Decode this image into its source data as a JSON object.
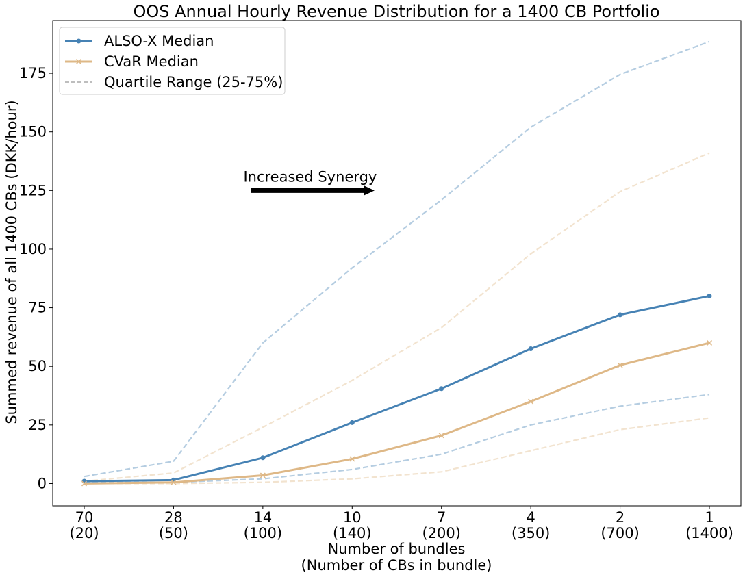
{
  "chart_data": {
    "type": "line",
    "title": "OOS Annual Hourly Revenue Distribution for a 1400 CB Portfolio",
    "xlabel_line1": "Number of bundles",
    "xlabel_line2": "(Number of CBs in bundle)",
    "ylabel": "Summed revenue of all 1400 CBs (DKK/hour)",
    "categories": [
      {
        "bundles": "70",
        "cbs": "(20)"
      },
      {
        "bundles": "28",
        "cbs": "(50)"
      },
      {
        "bundles": "14",
        "cbs": "(100)"
      },
      {
        "bundles": "10",
        "cbs": "(140)"
      },
      {
        "bundles": "7",
        "cbs": "(200)"
      },
      {
        "bundles": "4",
        "cbs": "(350)"
      },
      {
        "bundles": "2",
        "cbs": "(700)"
      },
      {
        "bundles": "1",
        "cbs": "(1400)"
      }
    ],
    "ylim": [
      -9.5,
      197.5
    ],
    "yticks": [
      0,
      25,
      50,
      75,
      100,
      125,
      150,
      175
    ],
    "series": [
      {
        "name": "ALSO-X Median",
        "color": "#4682b4",
        "marker": "circle",
        "style": "solid",
        "values": [
          1,
          1.5,
          11,
          26,
          40.5,
          57.5,
          72,
          80
        ]
      },
      {
        "name": "CVaR Median",
        "color": "#deb887",
        "marker": "x",
        "style": "solid",
        "values": [
          0,
          0.5,
          3.5,
          10.5,
          20.5,
          35,
          50.5,
          60
        ]
      }
    ],
    "quartile_lines": [
      {
        "color": "#4682b4",
        "values": [
          3,
          9.5,
          60,
          92,
          121,
          152,
          174.5,
          188.5
        ]
      },
      {
        "color": "#4682b4",
        "values": [
          0.5,
          0.5,
          2,
          6,
          12.5,
          25,
          33,
          38
        ]
      },
      {
        "color": "#deb887",
        "values": [
          1,
          4.5,
          24,
          44,
          66.5,
          98,
          124.5,
          141
        ]
      },
      {
        "color": "#deb887",
        "values": [
          0,
          0,
          0.5,
          2,
          5,
          14,
          23,
          28
        ]
      }
    ],
    "legend": {
      "position": "top-left",
      "entries": [
        "ALSO-X Median",
        "CVaR Median",
        "Quartile Range (25-75%)"
      ]
    },
    "annotation": {
      "text": "Increased Synergy",
      "x_from": 1.87,
      "x_to": 3.25,
      "y": 125
    },
    "grid": false
  }
}
